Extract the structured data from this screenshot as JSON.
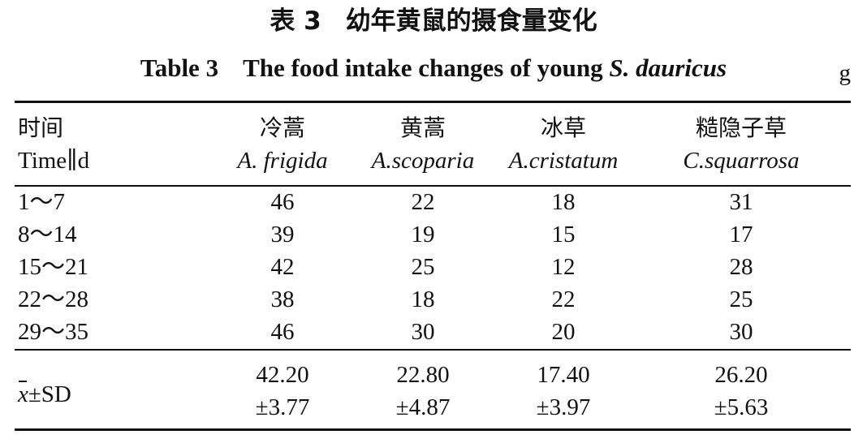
{
  "title_cn": {
    "label": "表 3",
    "text": "幼年黄鼠的摄食量变化"
  },
  "title_en": {
    "label": "Table 3",
    "text_pre": "The food intake changes of young ",
    "text_italic": "S. dauricus"
  },
  "unit": "g",
  "header": {
    "time_cn": "时间",
    "time_en": "Time∥d",
    "columns": [
      {
        "cn": "冷蒿",
        "latin": "A. frigida"
      },
      {
        "cn": "黄蒿",
        "latin": "A.scoparia"
      },
      {
        "cn": "冰草",
        "latin": "A.cristatum"
      },
      {
        "cn": "糙隐子草",
        "latin": "C.squarrosa"
      }
    ]
  },
  "rows": [
    {
      "time": "1～7",
      "values": [
        "46",
        "22",
        "18",
        "31"
      ]
    },
    {
      "time": "8～14",
      "values": [
        "39",
        "19",
        "15",
        "17"
      ]
    },
    {
      "time": "15～21",
      "values": [
        "42",
        "25",
        "12",
        "28"
      ]
    },
    {
      "time": "22～28",
      "values": [
        "38",
        "18",
        "22",
        "25"
      ]
    },
    {
      "time": "29～35",
      "values": [
        "46",
        "30",
        "20",
        "30"
      ]
    }
  ],
  "summary": {
    "label_symbol": "x",
    "label_suffix": "±SD",
    "means": [
      "42.20",
      "22.80",
      "17.40",
      "26.20"
    ],
    "sds": [
      "±3.77",
      "±4.87",
      "±3.97",
      "±5.63"
    ]
  }
}
